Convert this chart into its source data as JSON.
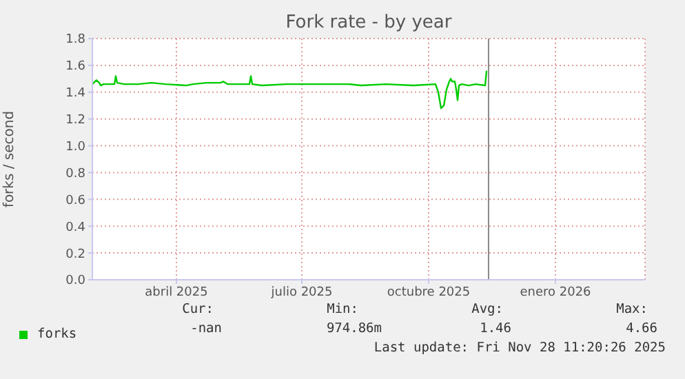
{
  "chart_data": {
    "type": "line",
    "title": "Fork rate - by year",
    "ylabel": "forks / second",
    "x": [
      "2025-02-14",
      "2025-02-16",
      "2025-02-17",
      "2025-02-19",
      "2025-02-20",
      "2025-02-22",
      "2025-03-02",
      "2025-03-03",
      "2025-03-04",
      "2025-03-09",
      "2025-03-19",
      "2025-03-29",
      "2025-04-08",
      "2025-04-23",
      "2025-04-28",
      "2025-05-08",
      "2025-05-18",
      "2025-05-20",
      "2025-05-23",
      "2025-06-02",
      "2025-06-08",
      "2025-06-09",
      "2025-06-10",
      "2025-06-17",
      "2025-07-05",
      "2025-07-27",
      "2025-08-19",
      "2025-08-28",
      "2025-09-15",
      "2025-10-05",
      "2025-10-21",
      "2025-10-23",
      "2025-10-25",
      "2025-10-27",
      "2025-10-29",
      "2025-10-31",
      "2025-11-01",
      "2025-11-02",
      "2025-11-04",
      "2025-11-05",
      "2025-11-06",
      "2025-11-07",
      "2025-11-09",
      "2025-11-14",
      "2025-11-19",
      "2025-11-26",
      "2025-11-27"
    ],
    "series": [
      {
        "name": "forks",
        "color": "#00cc00",
        "values": [
          1.46,
          1.48,
          1.49,
          1.47,
          1.45,
          1.46,
          1.46,
          1.52,
          1.47,
          1.46,
          1.46,
          1.47,
          1.46,
          1.45,
          1.46,
          1.47,
          1.47,
          1.48,
          1.46,
          1.46,
          1.46,
          1.52,
          1.46,
          1.45,
          1.46,
          1.46,
          1.46,
          1.45,
          1.46,
          1.45,
          1.46,
          1.4,
          1.28,
          1.3,
          1.42,
          1.48,
          1.5,
          1.48,
          1.48,
          1.42,
          1.34,
          1.45,
          1.46,
          1.45,
          1.46,
          1.45,
          1.56
        ]
      }
    ],
    "xlim": [
      "2025-02-14",
      "2026-03-22"
    ],
    "xticks": [
      {
        "value": "2025-04-16",
        "label": "abril 2025"
      },
      {
        "value": "2025-07-16",
        "label": "julio 2025"
      },
      {
        "value": "2025-10-16",
        "label": "octubre 2025"
      },
      {
        "value": "2026-01-16",
        "label": "enero 2026"
      }
    ],
    "ylim": [
      0,
      1.8
    ],
    "yticks": [
      {
        "value": 0,
        "label": "0.0"
      },
      0.2,
      0.4,
      0.6,
      0.8,
      {
        "value": 1,
        "label": "1.0"
      },
      1.2,
      1.4,
      1.6,
      1.8
    ],
    "ref_lines": [
      {
        "axis": "x",
        "value": "2025-11-28T11:20",
        "color": "#888888"
      }
    ],
    "grid": true,
    "legend": "bottom left",
    "marker": "none",
    "annotations": [
      "Cur:",
      "Min:",
      "Avg:",
      "Max:",
      "-nan",
      "974.86m",
      "1.46",
      "4.66",
      "Last update: Fri Nov 28 11:20:26 2025"
    ]
  }
}
